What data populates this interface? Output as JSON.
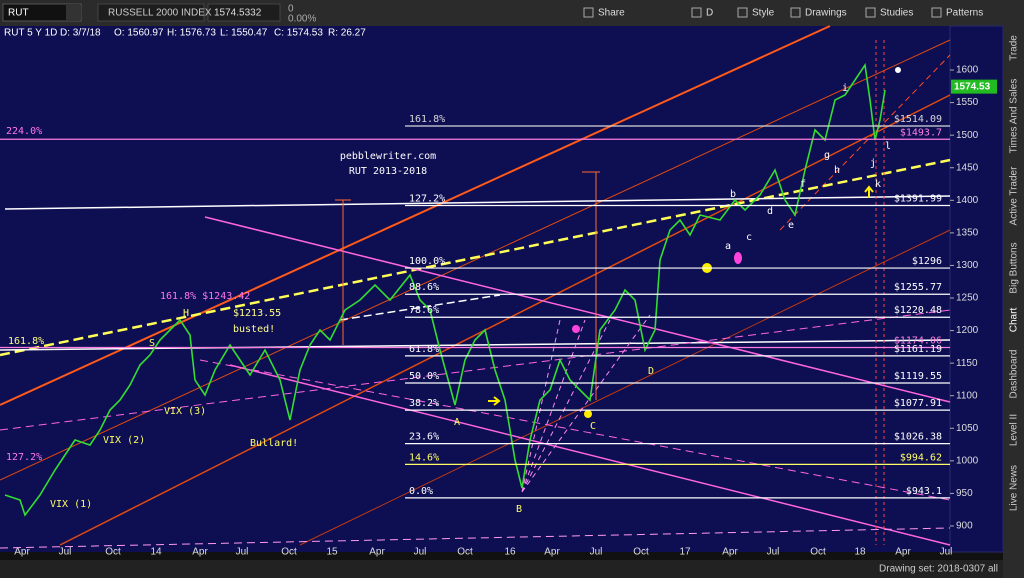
{
  "toolbar": {
    "symbol": "RUT",
    "name": "RUSSELL 2000 INDEX",
    "last": "1574.5332",
    "change": "0",
    "change_pct": "0.00%",
    "buttons": [
      "Share",
      "D",
      "Style",
      "Drawings",
      "Studies",
      "Patterns"
    ]
  },
  "info": {
    "symbol": "RUT 5 Y 1D",
    "items": [
      "D: 3/7/18",
      "O: 1560.97",
      "H: 1576.73",
      "L: 1550.47",
      "C: 1574.53",
      "R: 26.27"
    ]
  },
  "price_axis": {
    "range": [
      870.8,
      1667.6
    ],
    "ticks": [
      900,
      950,
      1000,
      1050,
      1100,
      1150,
      1200,
      1250,
      1300,
      1350,
      1400,
      1450,
      1500,
      1550,
      1600
    ],
    "current": {
      "value": 1574.53,
      "label": "1574.53"
    }
  },
  "time_axis": {
    "labels": [
      "Apr",
      "Jul",
      "Oct",
      "14",
      "Apr",
      "Jul",
      "Oct",
      "15",
      "Apr",
      "Jul",
      "Oct",
      "16",
      "Apr",
      "Jul",
      "Oct",
      "17",
      "Apr",
      "Jul",
      "Oct",
      "18",
      "Apr",
      "Jul"
    ]
  },
  "levels": [
    {
      "pct": "161.8%",
      "price": "$1514.09",
      "value": 1514.09,
      "color": "#d8d8d8"
    },
    {
      "price": "$1493.7",
      "value": 1493.7,
      "color": "#ff7fe0"
    },
    {
      "pct": "127.2%",
      "price": "$1391.99",
      "value": 1391.99,
      "color": "#ffffff"
    },
    {
      "pct": "100.0%",
      "price": "$1296",
      "value": 1296,
      "color": "#ffffff"
    },
    {
      "pct": "88.6%",
      "price": "$1255.77",
      "value": 1255.77,
      "color": "#ffffff"
    },
    {
      "pct": "78.6%",
      "price": "$1220.48",
      "value": 1220.48,
      "color": "#ffffff"
    },
    {
      "price": "$1174.06",
      "value": 1174.06,
      "color": "#ff7fe0"
    },
    {
      "pct": "61.8%",
      "price": "$1161.19",
      "value": 1161.19,
      "color": "#ffffff"
    },
    {
      "pct": "50.0%",
      "price": "$1119.55",
      "value": 1119.55,
      "color": "#ffffff"
    },
    {
      "pct": "38.2%",
      "price": "$1077.91",
      "value": 1077.91,
      "color": "#ffffff"
    },
    {
      "pct": "23.6%",
      "price": "$1026.38",
      "value": 1026.38,
      "color": "#ffffff"
    },
    {
      "pct": "14.6%",
      "price": "$994.62",
      "value": 994.62,
      "color": "#ffff66"
    },
    {
      "pct": "0.0%",
      "price": "$943.1",
      "value": 943.1,
      "color": "#ffffff"
    }
  ],
  "annotations": [
    "pebblewriter.com",
    "RUT 2013-2018",
    "224.0%",
    "161.8%",
    "127.2%",
    "161.8% $1243.42",
    "$1213.55",
    "busted!",
    "VIX (1)",
    "VIX (2)",
    "VIX (3)",
    "Bullard!",
    "S",
    "H",
    "A",
    "B",
    "C",
    "D",
    "a",
    "b",
    "c",
    "d",
    "e",
    "f",
    "g",
    "h",
    "i",
    "j",
    "k",
    "l"
  ],
  "sidebar": [
    "Trade",
    "Times And Sales",
    "Active Trader",
    "Big Buttons",
    "Chart",
    "Dashboard",
    "Level II",
    "Live News"
  ],
  "footer": "Drawing set: 2018-0307 all"
}
